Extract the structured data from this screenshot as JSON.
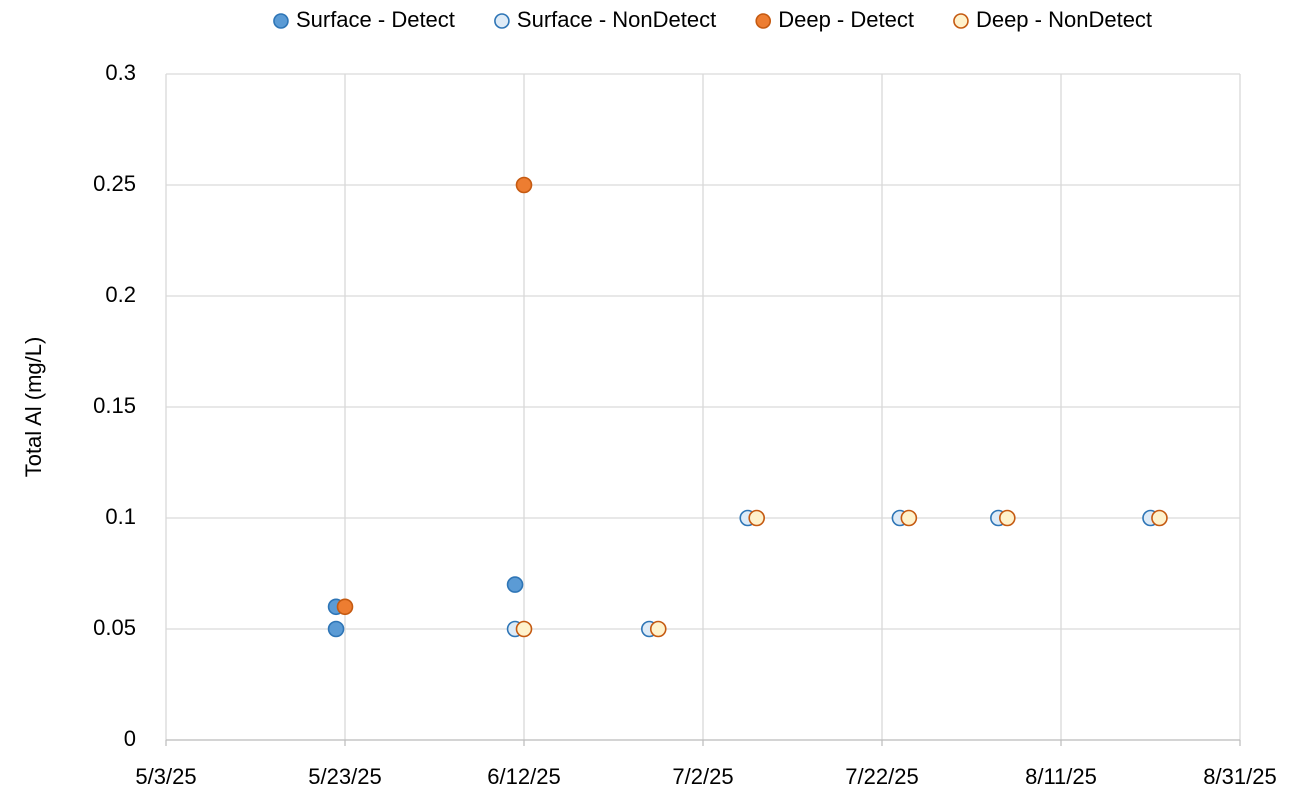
{
  "chart_data": {
    "type": "scatter",
    "ylabel": "Total Al (mg/L)",
    "legend": "top",
    "grid": true,
    "xlim": [
      "2025-05-03",
      "2025-08-31"
    ],
    "xticks": [
      {
        "value": "2025-05-03",
        "label": "5/3/25"
      },
      {
        "value": "2025-05-23",
        "label": "5/23/25"
      },
      {
        "value": "2025-06-12",
        "label": "6/12/25"
      },
      {
        "value": "2025-07-02",
        "label": "7/2/25"
      },
      {
        "value": "2025-07-22",
        "label": "7/22/25"
      },
      {
        "value": "2025-08-11",
        "label": "8/11/25"
      },
      {
        "value": "2025-08-31",
        "label": "8/31/25"
      }
    ],
    "ylim": [
      0,
      0.3
    ],
    "yticks": [
      0,
      0.05,
      0.1,
      0.15,
      0.2,
      0.25,
      0.3
    ],
    "series": [
      {
        "name": "Surface - Detect",
        "color": "#5b9bd5",
        "edgecolor": "#2e75b6",
        "x": [
          "2025-05-22",
          "2025-05-22",
          "2025-06-11"
        ],
        "values": [
          0.06,
          0.05,
          0.07
        ]
      },
      {
        "name": "Surface - NonDetect",
        "color": "#deebf7",
        "edgecolor": "#2e75b6",
        "x": [
          "2025-06-11",
          "2025-06-26",
          "2025-07-07",
          "2025-07-24",
          "2025-08-04",
          "2025-08-21"
        ],
        "values": [
          0.05,
          0.05,
          0.1,
          0.1,
          0.1,
          0.1
        ]
      },
      {
        "name": "Deep - Detect",
        "color": "#ed7d31",
        "edgecolor": "#c55a11",
        "x": [
          "2025-05-23",
          "2025-06-12"
        ],
        "values": [
          0.06,
          0.25
        ]
      },
      {
        "name": "Deep - NonDetect",
        "color": "#fff2cc",
        "edgecolor": "#c55a11",
        "x": [
          "2025-06-12",
          "2025-06-27",
          "2025-07-08",
          "2025-07-25",
          "2025-08-05",
          "2025-08-22"
        ],
        "values": [
          0.05,
          0.05,
          0.1,
          0.1,
          0.1,
          0.1
        ]
      }
    ]
  }
}
